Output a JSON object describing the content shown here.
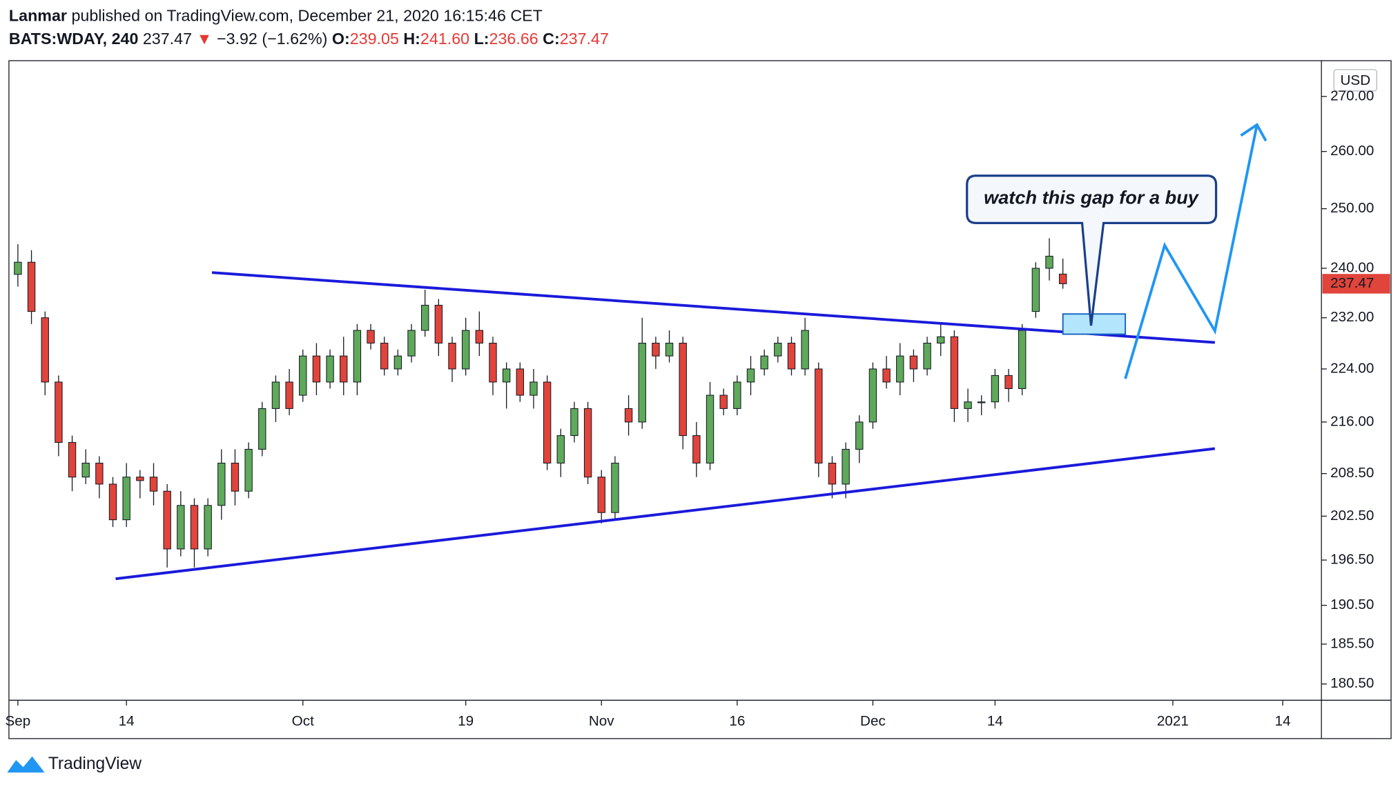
{
  "header": {
    "author": "Lanmar",
    "published": "published on TradingView.com, December 21, 2020 16:15:46 CET",
    "symbol": "BATS:WDAY, 240",
    "last": "237.47",
    "arrow": "▼",
    "change": "−3.92 (−1.62%)",
    "ohlc": [
      {
        "label": "O:",
        "value": "239.05"
      },
      {
        "label": "H:",
        "value": "241.60"
      },
      {
        "label": "L:",
        "value": "236.66"
      },
      {
        "label": "C:",
        "value": "237.47"
      }
    ],
    "currency": "USD"
  },
  "footer": {
    "brand": "TradingView"
  },
  "chart_data": {
    "type": "candlestick",
    "log_scale": true,
    "up_color": "#5ea95a",
    "down_color": "#e0443b",
    "open": [
      239,
      241,
      232,
      222,
      213,
      208,
      210,
      207,
      202,
      208,
      208,
      206,
      198,
      204,
      198,
      204,
      210,
      206,
      212,
      218,
      222,
      220,
      226,
      222,
      226,
      222,
      230,
      228,
      224,
      226,
      230,
      234,
      228,
      224,
      230,
      228,
      222,
      224,
      220,
      222,
      210,
      214,
      218,
      208,
      203,
      218,
      216,
      228,
      226,
      228,
      214,
      210,
      220,
      218,
      222,
      224,
      226,
      228,
      224,
      224,
      210,
      207,
      212,
      216,
      224,
      222,
      226,
      224,
      228,
      229,
      218,
      219,
      219,
      223,
      221,
      233,
      240,
      239.05
    ],
    "high": [
      244,
      243,
      233,
      223,
      214,
      212,
      211,
      208,
      210,
      209,
      210,
      207,
      206,
      205,
      205,
      212,
      212,
      213,
      219,
      223,
      224,
      227,
      228,
      227,
      229,
      231,
      231,
      229,
      227,
      231,
      236.5,
      235,
      229,
      232,
      233,
      229,
      225,
      225,
      224,
      223,
      215,
      219,
      219,
      209,
      211,
      220,
      232,
      229,
      230,
      229,
      216,
      222,
      221,
      223,
      226,
      227,
      229,
      229,
      232,
      225,
      211,
      213,
      217,
      225,
      226,
      228,
      227,
      229,
      231,
      230,
      221,
      220,
      224,
      224,
      231,
      241,
      245,
      241.6
    ],
    "low": [
      237,
      231,
      220,
      211,
      206,
      207,
      205,
      201,
      201,
      205,
      204,
      195.5,
      197,
      195.5,
      197,
      202,
      204,
      205,
      211,
      216,
      217,
      219,
      220,
      221,
      220,
      220,
      227,
      223,
      223,
      225,
      229,
      226,
      222,
      223,
      226,
      220,
      218,
      219,
      218,
      209,
      208,
      213,
      207,
      201.5,
      202,
      214,
      215,
      224,
      225,
      212,
      208,
      209,
      217,
      217,
      220,
      223,
      225,
      223,
      223,
      208,
      205,
      205,
      210,
      215,
      221,
      220,
      222,
      223,
      226,
      216,
      216,
      217,
      218,
      219,
      220,
      232,
      238,
      236.66
    ],
    "close": [
      241,
      233,
      222,
      213,
      208,
      210,
      207,
      202,
      208,
      207.5,
      206,
      198,
      204,
      198,
      204,
      210,
      206,
      212,
      218,
      222,
      218,
      226,
      222,
      226,
      222,
      230,
      228,
      224,
      226,
      230,
      234,
      228,
      224,
      230,
      228,
      222,
      224,
      220,
      222,
      210,
      214,
      218,
      208,
      203,
      210,
      216,
      228,
      226,
      228,
      214,
      210,
      220,
      218,
      222,
      224,
      226,
      228,
      224,
      230,
      210,
      207,
      212,
      216,
      224,
      222,
      226,
      224,
      228,
      229,
      218,
      219,
      219,
      223,
      221,
      230,
      240,
      242,
      237.47
    ],
    "xlim": [
      -0.66,
      96.05
    ],
    "xticks": [
      {
        "value": 0,
        "label": "Sep"
      },
      {
        "value": 8,
        "label": "14"
      },
      {
        "value": 21,
        "label": "Oct"
      },
      {
        "value": 33,
        "label": "19"
      },
      {
        "value": 43,
        "label": "Nov"
      },
      {
        "value": 53,
        "label": "16"
      },
      {
        "value": 63,
        "label": "Dec"
      },
      {
        "value": 72,
        "label": "14"
      },
      {
        "value": 85.1,
        "label": "2021"
      },
      {
        "value": 93.2,
        "label": "14"
      }
    ],
    "ylim": [
      178.5,
      276.7
    ],
    "yticks": [
      {
        "value": 270,
        "label": "270.00"
      },
      {
        "value": 260,
        "label": "260.00"
      },
      {
        "value": 250,
        "label": "250.00"
      },
      {
        "value": 240,
        "label": "240.00"
      },
      {
        "value": 232,
        "label": "232.00"
      },
      {
        "value": 224,
        "label": "224.00"
      },
      {
        "value": 216,
        "label": "216.00"
      },
      {
        "value": 208.5,
        "label": "208.50"
      },
      {
        "value": 202.5,
        "label": "202.50"
      },
      {
        "value": 196.5,
        "label": "196.50"
      },
      {
        "value": 190.5,
        "label": "190.50"
      },
      {
        "value": 185.5,
        "label": "185.50"
      },
      {
        "value": 180.5,
        "label": "180.50"
      }
    ],
    "trendlines": [
      {
        "color": "#1a1adb",
        "x": [
          14.3,
          88.2
        ],
        "y": [
          239.3,
          228.1
        ]
      },
      {
        "color": "#1a1adb",
        "x": [
          7.2,
          88.2
        ],
        "y": [
          194.0,
          212.1
        ]
      }
    ],
    "projection": {
      "color": "#2196f3",
      "x": [
        81.6,
        84.5,
        88.2,
        91.3
      ],
      "y": [
        222.5,
        243.8,
        229.9,
        264.8
      ]
    },
    "gap_zone": {
      "x": [
        77.0,
        81.6
      ],
      "y": [
        229.4,
        232.6
      ],
      "color": "#b3e5fc",
      "border": "#1565c0"
    },
    "annotation": "watch this gap for a buy"
  }
}
